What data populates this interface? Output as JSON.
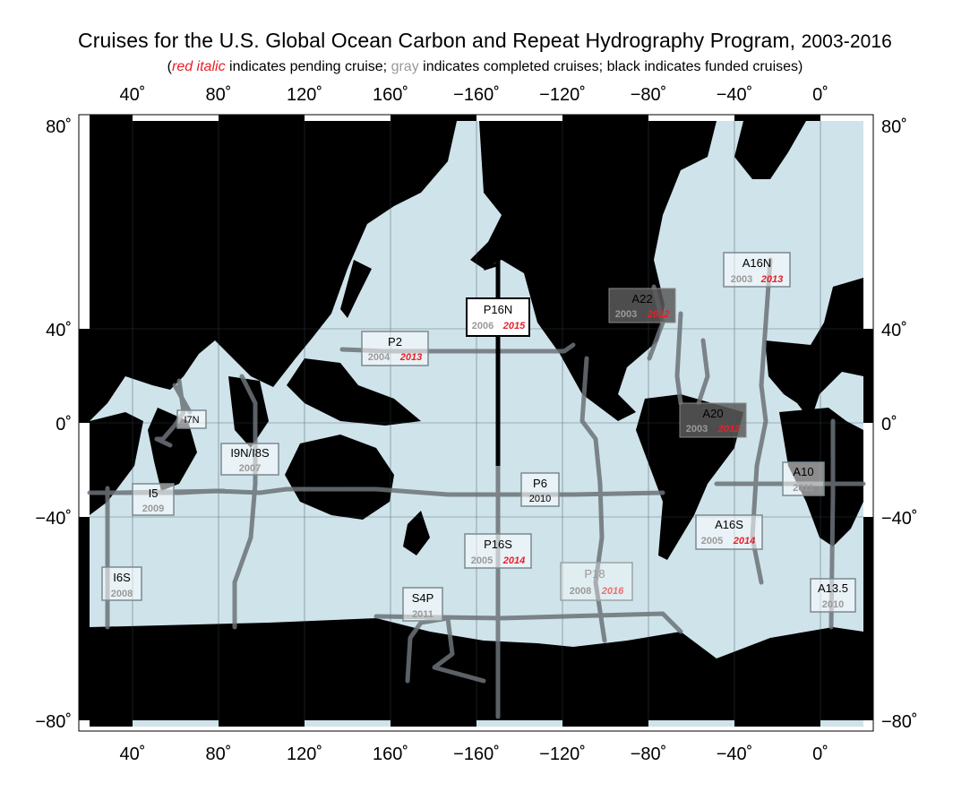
{
  "title": {
    "main": "Cruises for the U.S. Global Ocean Carbon and Repeat Hydrography Program,",
    "years": "2003-2016"
  },
  "subtitle": {
    "open": "(",
    "red_text": "red italic",
    "part1": " indicates pending cruise; ",
    "gray_text": "gray",
    "part2": " indicates completed cruises; black indicates funded cruises)"
  },
  "colors": {
    "ocean": "#cfe3ea",
    "land": "#000000",
    "pending": "#e8202a",
    "completed": "#9a9a9a",
    "track": "#6b7378",
    "funded": "#000000"
  },
  "axes": {
    "x_top": [
      "40˚",
      "80˚",
      "120˚",
      "160˚",
      "−160˚",
      "−120˚",
      "−80˚",
      "−40˚",
      "0˚"
    ],
    "x_bottom": [
      "40˚",
      "80˚",
      "120˚",
      "160˚",
      "−160˚",
      "−120˚",
      "−80˚",
      "−40˚",
      "0˚"
    ],
    "y_left": [
      "80˚",
      "40˚",
      "0˚",
      "−40˚",
      "−80˚"
    ],
    "y_right": [
      "80˚",
      "40˚",
      "0˚",
      "−40˚",
      "−80˚"
    ]
  },
  "cruises": [
    {
      "name": "P16N",
      "completed": "2006",
      "pending": "2015",
      "style": "white"
    },
    {
      "name": "P2",
      "completed": "2004",
      "pending": "2013",
      "style": "light"
    },
    {
      "name": "A22",
      "completed": "2003",
      "pending": "2012",
      "style": "dark"
    },
    {
      "name": "A16N",
      "completed": "2003",
      "pending": "2013",
      "style": "light"
    },
    {
      "name": "A20",
      "completed": "2003",
      "pending": "2012",
      "style": "dark"
    },
    {
      "name": "I7N",
      "style": "light"
    },
    {
      "name": "I9N/I8S",
      "completed": "2007",
      "style": "light"
    },
    {
      "name": "I5",
      "completed": "2009",
      "style": "light"
    },
    {
      "name": "P6",
      "funded": "2010",
      "style": "light"
    },
    {
      "name": "A10",
      "completed": "2011",
      "style": "light"
    },
    {
      "name": "A16S",
      "completed": "2005",
      "pending": "2014",
      "style": "light"
    },
    {
      "name": "P16S",
      "completed": "2005",
      "pending": "2014",
      "style": "light"
    },
    {
      "name": "P18",
      "completed": "2008",
      "pending": "2016",
      "style": "faded"
    },
    {
      "name": "I6S",
      "completed": "2008",
      "style": "light"
    },
    {
      "name": "S4P",
      "completed": "2011",
      "style": "light"
    },
    {
      "name": "A13.5",
      "completed": "2010",
      "style": "light"
    }
  ]
}
